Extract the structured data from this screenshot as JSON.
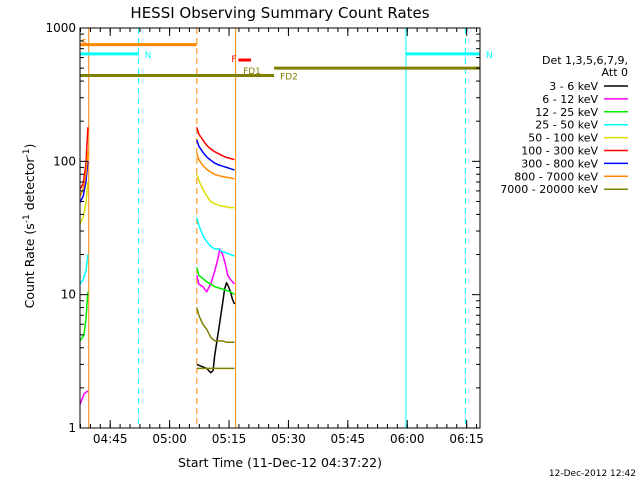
{
  "chart_data": {
    "type": "line",
    "title": "HESSI Observing Summary Count Rates",
    "xlabel": "Start Time (11-Dec-12 04:37:22)",
    "ylabel": "Count Rate (s^-1 detector^-1)",
    "ylabel_main": "Count Rate (s",
    "ylabel_sup1": "-1",
    "ylabel_mid": " detector",
    "ylabel_sup2": "-1",
    "ylabel_end": ")",
    "y_scale": "log",
    "ylim": [
      1,
      1000
    ],
    "xlim_minutes": [
      0,
      101
    ],
    "x_ticks": [
      {
        "m": 7.63,
        "label": "04:45"
      },
      {
        "m": 22.63,
        "label": "05:00"
      },
      {
        "m": 37.63,
        "label": "05:15"
      },
      {
        "m": 52.63,
        "label": "05:30"
      },
      {
        "m": 67.63,
        "label": "05:45"
      },
      {
        "m": 82.63,
        "label": "06:00"
      },
      {
        "m": 97.63,
        "label": "06:15"
      }
    ],
    "y_ticks": [
      {
        "v": 1,
        "label": "1"
      },
      {
        "v": 10,
        "label": "10"
      },
      {
        "v": 100,
        "label": "100"
      },
      {
        "v": 1000,
        "label": "1000"
      }
    ],
    "legend_header": [
      "Det 1,3,5,6,7,9,",
      "Att 0"
    ],
    "series": [
      {
        "name": "3 - 6 keV",
        "color": "#000000",
        "segments": [
          [
            [
              29.5,
              3
            ],
            [
              32,
              2.8
            ],
            [
              33,
              2.6
            ],
            [
              33.6,
              2.7
            ],
            [
              34,
              3.5
            ],
            [
              35,
              5.4
            ],
            [
              36,
              8.6
            ],
            [
              36.5,
              11
            ],
            [
              37,
              12.3
            ],
            [
              37.5,
              11.5
            ],
            [
              38,
              10.5
            ],
            [
              38.5,
              9.2
            ],
            [
              39,
              8.5
            ]
          ]
        ]
      },
      {
        "name": "6 - 12 keV",
        "color": "#ff00ff",
        "segments": [
          [
            [
              0,
              1.5
            ],
            [
              1,
              1.8
            ],
            [
              2,
              1.9
            ]
          ],
          [
            [
              29.5,
              14
            ],
            [
              30,
              12
            ],
            [
              31,
              11.5
            ],
            [
              32,
              10.5
            ],
            [
              33,
              12
            ],
            [
              34,
              15
            ],
            [
              34.7,
              18
            ],
            [
              35.3,
              22
            ],
            [
              36,
              20
            ],
            [
              36.7,
              17
            ],
            [
              37.3,
              14
            ],
            [
              38,
              13
            ],
            [
              39,
              12
            ]
          ]
        ]
      },
      {
        "name": "12 - 25 keV",
        "color": "#00ee00",
        "segments": [
          [
            [
              0,
              4.5
            ],
            [
              1,
              5
            ],
            [
              1.5,
              6.5
            ],
            [
              2,
              10.5
            ]
          ],
          [
            [
              29.5,
              16
            ],
            [
              30,
              14
            ],
            [
              32,
              12.5
            ],
            [
              34,
              11.5
            ],
            [
              36,
              11
            ],
            [
              38,
              10.5
            ],
            [
              39,
              10
            ]
          ]
        ]
      },
      {
        "name": "25 - 50 keV",
        "color": "#00ffff",
        "segments": [
          [
            [
              0,
              12
            ],
            [
              0.8,
              13
            ],
            [
              1.5,
              15
            ],
            [
              2,
              20
            ]
          ],
          [
            [
              29.5,
              38
            ],
            [
              30,
              33
            ],
            [
              31,
              28
            ],
            [
              32,
              25
            ],
            [
              33,
              23
            ],
            [
              34,
              22
            ],
            [
              35,
              22
            ],
            [
              36,
              21
            ],
            [
              37,
              20.5
            ],
            [
              38,
              20
            ],
            [
              39,
              19.5
            ]
          ]
        ]
      },
      {
        "name": "50 - 100 keV",
        "color": "#dddd00",
        "segments": [
          [
            [
              0,
              34
            ],
            [
              0.8,
              38
            ],
            [
              1.5,
              48
            ],
            [
              2,
              70
            ]
          ],
          [
            [
              29.5,
              80
            ],
            [
              30,
              72
            ],
            [
              31,
              62
            ],
            [
              32,
              55
            ],
            [
              33,
              50
            ],
            [
              34,
              48
            ],
            [
              35,
              47
            ],
            [
              36,
              46
            ],
            [
              37,
              45.5
            ],
            [
              38,
              45
            ],
            [
              39,
              45
            ]
          ]
        ]
      },
      {
        "name": "100 - 300 keV",
        "color": "#ff0000",
        "segments": [
          [
            [
              0,
              62
            ],
            [
              0.8,
              68
            ],
            [
              1.5,
              95
            ],
            [
              2,
              180
            ]
          ],
          [
            [
              29.5,
              180
            ],
            [
              30,
              160
            ],
            [
              31,
              145
            ],
            [
              32,
              132
            ],
            [
              33,
              124
            ],
            [
              34,
              118
            ],
            [
              35,
              114
            ],
            [
              36,
              110
            ],
            [
              37,
              107
            ],
            [
              38,
              105
            ],
            [
              39,
              103
            ]
          ]
        ]
      },
      {
        "name": "300 - 800 keV",
        "color": "#0000ff",
        "segments": [
          [
            [
              0,
              49
            ],
            [
              0.8,
              55
            ],
            [
              1.5,
              70
            ],
            [
              2,
              100
            ]
          ],
          [
            [
              29.5,
              145
            ],
            [
              30,
              130
            ],
            [
              31,
              117
            ],
            [
              32,
              108
            ],
            [
              33,
              102
            ],
            [
              34,
              97
            ],
            [
              35,
              94
            ],
            [
              36,
              92
            ],
            [
              37,
              90
            ],
            [
              38,
              88
            ],
            [
              39,
              86
            ]
          ]
        ]
      },
      {
        "name": "800 - 7000 keV",
        "color": "#ff8800",
        "segments": [
          [
            [
              0,
              55
            ],
            [
              0.8,
              62
            ],
            [
              1.5,
              80
            ],
            [
              2,
              120
            ]
          ],
          [
            [
              29.5,
              115
            ],
            [
              30,
              103
            ],
            [
              31,
              93
            ],
            [
              32,
              87
            ],
            [
              33,
              83
            ],
            [
              34,
              80
            ],
            [
              35,
              78
            ],
            [
              36,
              77
            ],
            [
              37,
              76
            ],
            [
              38,
              75
            ],
            [
              39,
              74
            ]
          ]
        ]
      },
      {
        "name": "7000 - 20000 keV",
        "color": "#808000",
        "segments": [
          [
            [
              29.5,
              8
            ],
            [
              30,
              7
            ],
            [
              31,
              6
            ],
            [
              32,
              5.5
            ],
            [
              33,
              4.8
            ],
            [
              34,
              4.5
            ],
            [
              35,
              4.5
            ],
            [
              36,
              4.5
            ],
            [
              37,
              4.4
            ],
            [
              38,
              4.4
            ],
            [
              39,
              4.4
            ]
          ],
          [
            [
              29.5,
              2.8
            ],
            [
              39,
              2.8
            ]
          ]
        ]
      }
    ],
    "flags": [
      {
        "label": "S",
        "color": "#ff8800",
        "m1": 0,
        "m2": 29.5,
        "y": 750
      },
      {
        "label": "N",
        "color": "#00ffff",
        "m1": 0,
        "m2": 14.8,
        "y": 640
      },
      {
        "label": "N",
        "color": "#00ffff",
        "m1": 82.3,
        "m2": 101,
        "y": 640
      },
      {
        "label": "F",
        "color": "#ff0000",
        "m1": 40,
        "m2": 43.2,
        "y": 575
      },
      {
        "label": "FD1",
        "color": "#808000",
        "m1": 43.2,
        "m2": 43.2,
        "y": 500
      },
      {
        "label": "FD2",
        "color": "#808000",
        "m1": 0,
        "m2": 49,
        "y": 440
      },
      {
        "label": "",
        "color": "#808000",
        "m1": 49,
        "m2": 101,
        "y": 500
      }
    ],
    "vlines": [
      {
        "m": 0,
        "color": "#00ffff",
        "dash": false
      },
      {
        "m": 2.2,
        "color": "#ff8800",
        "dash": false
      },
      {
        "m": 14.8,
        "color": "#00ffff",
        "dash": true
      },
      {
        "m": 29.5,
        "color": "#ff8800",
        "dash": true
      },
      {
        "m": 39.3,
        "color": "#ff8800",
        "dash": false
      },
      {
        "m": 82.3,
        "color": "#00ffff",
        "dash": false
      },
      {
        "m": 97.3,
        "color": "#00ffff",
        "dash": true
      }
    ],
    "footer": "12-Dec-2012 12:42"
  }
}
